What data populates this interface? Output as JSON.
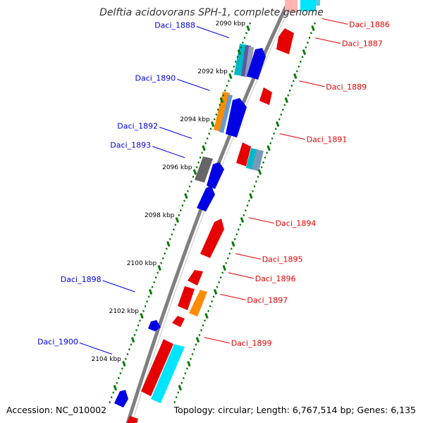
{
  "title": "Delftia acidovorans SPH-1, complete genome",
  "footer": {
    "accession": "Accession: NC_010002",
    "topology": "Topology: circular; Length: 6,767,514 bp; Genes: 6,135"
  },
  "colors": {
    "forward": "#0000e6",
    "reverse": "#e60000",
    "tick": "#007700",
    "backbone": "#888888"
  },
  "kbp_marks": [
    {
      "label": "2090 kbp",
      "pos": 2090
    },
    {
      "label": "2092 kbp",
      "pos": 2092
    },
    {
      "label": "2094 kbp",
      "pos": 2094
    },
    {
      "label": "2096 kbp",
      "pos": 2096
    },
    {
      "label": "2098 kbp",
      "pos": 2098
    },
    {
      "label": "2100 kbp",
      "pos": 2100
    },
    {
      "label": "2102 kbp",
      "pos": 2102
    },
    {
      "label": "2104 kbp",
      "pos": 2104
    }
  ],
  "genes_left": [
    {
      "label": "Daci_1888",
      "pos": 2090.4
    },
    {
      "label": "Daci_1890",
      "pos": 2092.6
    },
    {
      "label": "Daci_1892",
      "pos": 2094.6
    },
    {
      "label": "Daci_1893",
      "pos": 2095.4
    },
    {
      "label": "Daci_1898",
      "pos": 2101.0
    },
    {
      "label": "Daci_1900",
      "pos": 2103.6
    }
  ],
  "genes_right": [
    {
      "label": "Daci_1886",
      "pos": 2089.6
    },
    {
      "label": "Daci_1887",
      "pos": 2090.4
    },
    {
      "label": "Daci_1889",
      "pos": 2092.2
    },
    {
      "label": "Daci_1891",
      "pos": 2094.4
    },
    {
      "label": "Daci_1894",
      "pos": 2097.9
    },
    {
      "label": "Daci_1895",
      "pos": 2099.4
    },
    {
      "label": "Daci_1896",
      "pos": 2100.2
    },
    {
      "label": "Daci_1897",
      "pos": 2101.1
    },
    {
      "label": "Daci_1899",
      "pos": 2102.9
    }
  ]
}
